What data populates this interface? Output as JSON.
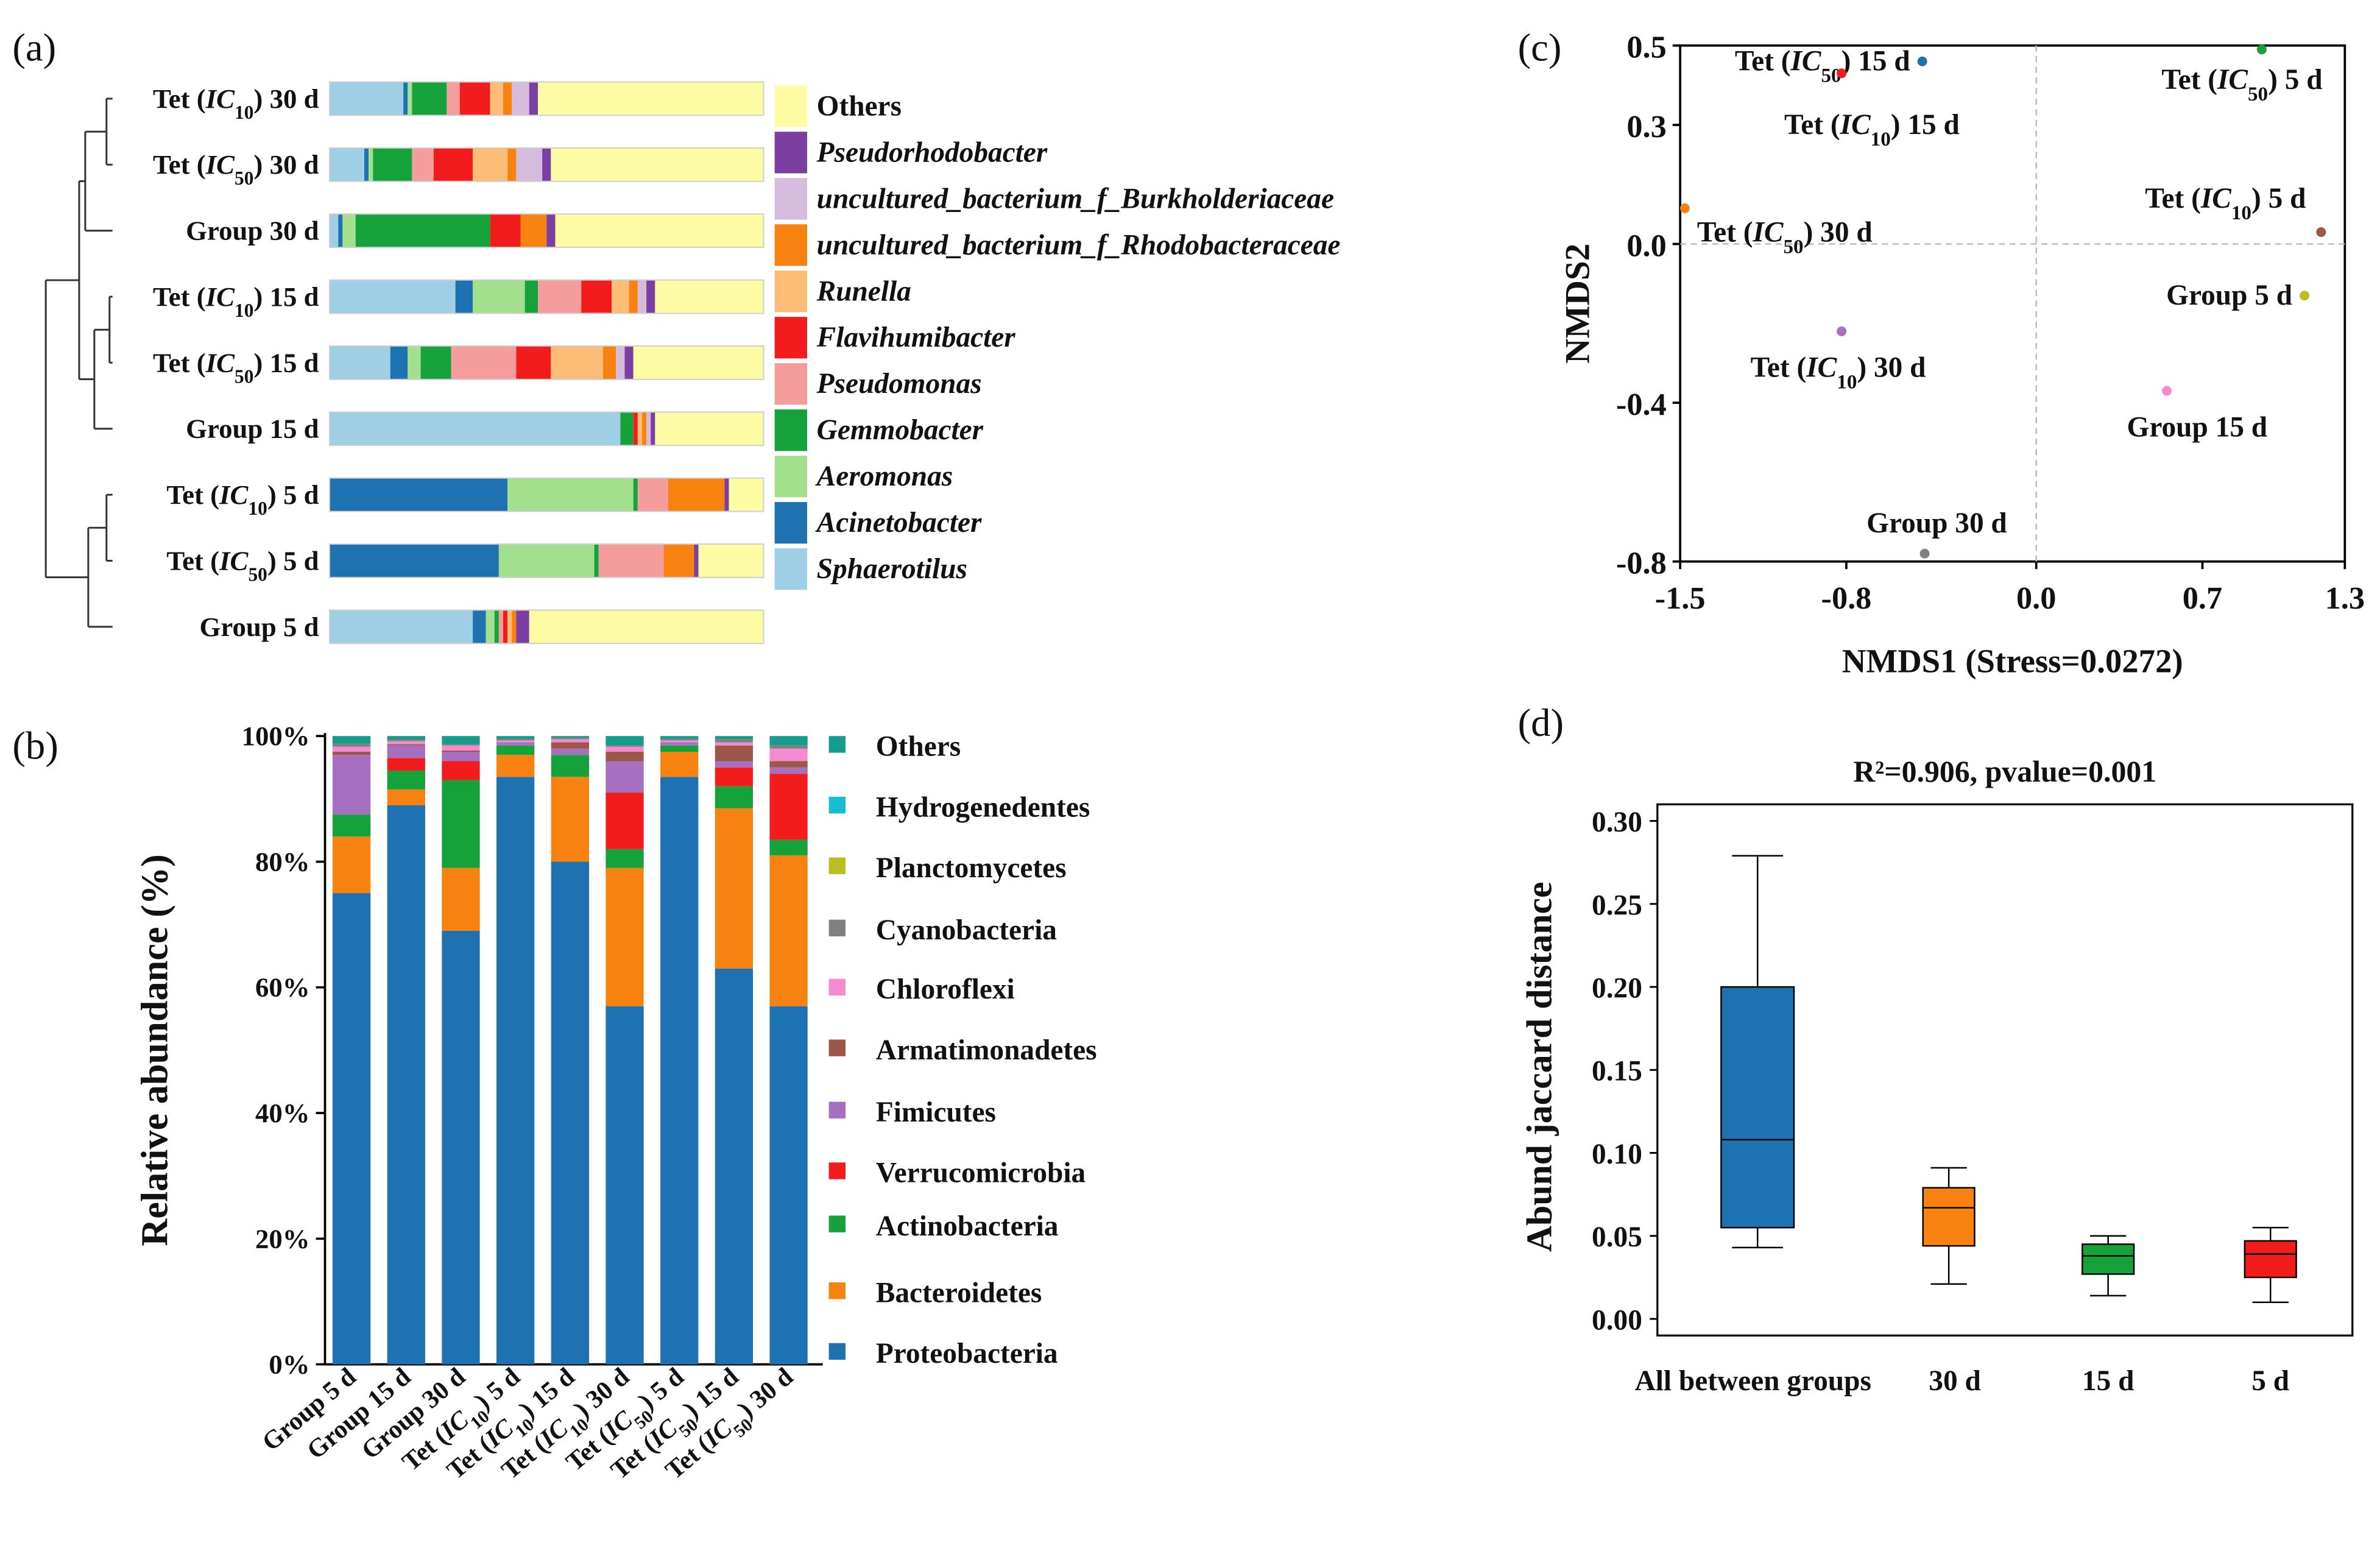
{
  "figure": {
    "panel_labels": [
      "(a)",
      "(b)",
      "(c)",
      "(d)"
    ]
  },
  "chart_data": [
    {
      "panel": "a",
      "type": "bar",
      "orientation": "horizontal-stacked",
      "title": "",
      "xlabel": "",
      "ylabel": "",
      "categories": [
        "Tet (IC10) 30 d",
        "Tet (IC50) 30 d",
        "Group 30 d",
        "Tet (IC10) 15 d",
        "Tet (IC50) 15 d",
        "Group 15 d",
        "Tet (IC10) 5 d",
        "Tet (IC50) 5 d",
        "Group 5 d"
      ],
      "category_labels": [
        {
          "pre": "Tet (",
          "it": "IC",
          "sub": "10",
          "post": ") 30 d"
        },
        {
          "pre": "Tet (",
          "it": "IC",
          "sub": "50",
          "post": ") 30 d"
        },
        {
          "pre": "Group 30 d",
          "it": "",
          "sub": "",
          "post": ""
        },
        {
          "pre": "Tet (",
          "it": "IC",
          "sub": "10",
          "post": ") 15 d"
        },
        {
          "pre": "Tet (",
          "it": "IC",
          "sub": "50",
          "post": ") 15 d"
        },
        {
          "pre": "Group 15 d",
          "it": "",
          "sub": "",
          "post": ""
        },
        {
          "pre": "Tet (",
          "it": "IC",
          "sub": "10",
          "post": ") 5 d"
        },
        {
          "pre": "Tet (",
          "it": "IC",
          "sub": "50",
          "post": ") 5 d"
        },
        {
          "pre": "Group 5 d",
          "it": "",
          "sub": "",
          "post": ""
        }
      ],
      "series": [
        {
          "name": "Sphaerotilus",
          "color": "#9ecfe4",
          "values": [
            17,
            8,
            2,
            29,
            14,
            67,
            0,
            0,
            33
          ]
        },
        {
          "name": "Acinetobacter",
          "color": "#1f72b2",
          "values": [
            1,
            1,
            1,
            4,
            4,
            0,
            41,
            39,
            3
          ]
        },
        {
          "name": "Aeromonas",
          "color": "#a2e08e",
          "values": [
            1,
            1,
            3,
            12,
            3,
            0,
            29,
            22,
            2
          ]
        },
        {
          "name": "Gemmobacter",
          "color": "#16a23b",
          "values": [
            8,
            9,
            31,
            3,
            7,
            3,
            1,
            1,
            1
          ]
        },
        {
          "name": "Pseudomonas",
          "color": "#f59c9c",
          "values": [
            3,
            5,
            0,
            10,
            15,
            0,
            7,
            15,
            1
          ]
        },
        {
          "name": "Flavihumibacter",
          "color": "#f21c1c",
          "values": [
            7,
            9,
            7,
            7,
            8,
            1,
            0,
            0,
            1
          ]
        },
        {
          "name": "Runella",
          "color": "#fdbd77",
          "values": [
            3,
            8,
            0,
            4,
            12,
            1,
            0,
            0,
            1
          ]
        },
        {
          "name": "uncultured_bacterium_f_Rhodobacteraceae",
          "color": "#f7820f",
          "values": [
            2,
            2,
            6,
            2,
            3,
            1,
            13,
            7,
            1
          ]
        },
        {
          "name": "uncultured_bacterium_f_Burkholderiaceae",
          "color": "#d5bcdc",
          "values": [
            4,
            6,
            0,
            2,
            2,
            1,
            0,
            0,
            0
          ]
        },
        {
          "name": "Pseudorhodobacter",
          "color": "#7a3fa0",
          "values": [
            2,
            2,
            2,
            2,
            2,
            1,
            1,
            1,
            3
          ]
        },
        {
          "name": "Others",
          "color": "#fdfba4",
          "values": [
            52,
            49,
            48,
            25,
            30,
            25,
            8,
            15,
            54
          ]
        }
      ],
      "legend_position": "right",
      "legend_order": [
        "Others",
        "Pseudorhodobacter",
        "uncultured_bacterium_f_Burkholderiaceae",
        "uncultured_bacterium_f_Rhodobacteraceae",
        "Runella",
        "Flavihumibacter",
        "Pseudomonas",
        "Gemmobacter",
        "Aeromonas",
        "Acinetobacter",
        "Sphaerotilus"
      ],
      "dendrogram": "left"
    },
    {
      "panel": "b",
      "type": "bar",
      "orientation": "vertical-stacked",
      "title": "",
      "xlabel": "",
      "ylabel": "Relative abundance (%)",
      "ylim": [
        0,
        100
      ],
      "yticks": [
        "0%",
        "20%",
        "40%",
        "60%",
        "80%",
        "100%"
      ],
      "categories": [
        "Group 5 d",
        "Group 15 d",
        "Group 30 d",
        "Tet (IC10) 5 d",
        "Tet (IC10) 15 d",
        "Tet (IC10) 30 d",
        "Tet (IC50) 5 d",
        "Tet (IC50) 15 d",
        "Tet (IC50) 30 d"
      ],
      "category_labels": [
        {
          "pre": "Group 5 d",
          "it": "",
          "sub": "",
          "post": ""
        },
        {
          "pre": "Group 15 d",
          "it": "",
          "sub": "",
          "post": ""
        },
        {
          "pre": "Group 30 d",
          "it": "",
          "sub": "",
          "post": ""
        },
        {
          "pre": "Tet (",
          "it": "IC",
          "sub": "10",
          "post": ") 5 d"
        },
        {
          "pre": "Tet (",
          "it": "IC",
          "sub": "10",
          "post": ") 15 d"
        },
        {
          "pre": "Tet (",
          "it": "IC",
          "sub": "10",
          "post": ") 30 d"
        },
        {
          "pre": "Tet (",
          "it": "IC",
          "sub": "50",
          "post": ") 5 d"
        },
        {
          "pre": "Tet (",
          "it": "IC",
          "sub": "50",
          "post": ") 15 d"
        },
        {
          "pre": "Tet (",
          "it": "IC",
          "sub": "50",
          "post": ") 30 d"
        }
      ],
      "series": [
        {
          "name": "Proteobacteria",
          "color": "#1f72b2",
          "values": [
            75,
            89,
            69,
            93.5,
            80,
            57,
            93.5,
            63,
            57
          ]
        },
        {
          "name": "Bacteroidetes",
          "color": "#f7820f",
          "values": [
            9,
            2.5,
            10,
            3.5,
            13.5,
            22,
            4,
            25.5,
            24
          ]
        },
        {
          "name": "Actinobacteria",
          "color": "#16a23b",
          "values": [
            3.5,
            3,
            14,
            1.5,
            3.5,
            3,
            1,
            3.5,
            2.5
          ]
        },
        {
          "name": "Verrucomicrobia",
          "color": "#f21c1c",
          "values": [
            0,
            2,
            3,
            0,
            0,
            9,
            0,
            3,
            10.5
          ]
        },
        {
          "name": "Fimicutes",
          "color": "#a66fbf",
          "values": [
            9.5,
            2,
            1.5,
            0.5,
            1,
            5,
            0.5,
            1,
            1
          ]
        },
        {
          "name": "Armatimonadetes",
          "color": "#9c5749",
          "values": [
            0.5,
            0.2,
            0.2,
            0,
            1,
            1.5,
            0,
            2.5,
            1
          ]
        },
        {
          "name": "Chloroflexi",
          "color": "#f58ad0",
          "values": [
            0.8,
            0.5,
            0.8,
            0.3,
            0.5,
            0.8,
            0.3,
            0.5,
            2
          ]
        },
        {
          "name": "Cyanobacteria",
          "color": "#808080",
          "values": [
            0.5,
            0.2,
            0.2,
            0.2,
            0.2,
            0.2,
            0.2,
            0.5,
            0.5
          ]
        },
        {
          "name": "Planctomycetes",
          "color": "#bcbd22",
          "values": [
            0,
            0,
            0,
            0,
            0,
            0,
            0,
            0,
            0
          ]
        },
        {
          "name": "Hydrogenedentes",
          "color": "#17becf",
          "values": [
            0,
            0,
            0,
            0,
            0,
            0,
            0,
            0,
            0
          ]
        },
        {
          "name": "Others",
          "color": "#169c8c",
          "values": [
            1.2,
            0.6,
            1.3,
            0.5,
            0.3,
            1.5,
            0.5,
            0.5,
            1.5
          ]
        }
      ],
      "legend_position": "right",
      "legend_order": [
        "Others",
        "Hydrogenedentes",
        "Planctomycetes",
        "Cyanobacteria",
        "Chloroflexi",
        "Armatimonadetes",
        "Fimicutes",
        "Verrucomicrobia",
        "Actinobacteria",
        "Bacteroidetes",
        "Proteobacteria"
      ]
    },
    {
      "panel": "c",
      "type": "scatter",
      "title": "",
      "xlabel": "NMDS1 (Stress=0.0272)",
      "ylabel": "NMDS2",
      "xlim": [
        -1.5,
        1.3
      ],
      "ylim": [
        -0.8,
        0.5
      ],
      "xticks": [
        -1.5,
        -0.8,
        0.0,
        0.7,
        1.3
      ],
      "xtick_labels": [
        "-1.5",
        "-0.8",
        "0.0",
        "0.7",
        "1.3"
      ],
      "yticks": [
        0.5,
        0.3,
        0.0,
        -0.4,
        -0.8
      ],
      "ytick_labels": [
        "0.5",
        "0.3",
        "0.0",
        "-0.4",
        "-0.8"
      ],
      "reference_lines": {
        "x": 0,
        "y": 0,
        "style": "dashed"
      },
      "points": [
        {
          "x": -0.48,
          "y": 0.46,
          "color": "#1f72b2",
          "label": {
            "pre": "Tet (",
            "it": "IC",
            "sub": "50",
            "post": ") 15 d"
          },
          "label_anchor": "end",
          "label_side": "left"
        },
        {
          "x": 0.95,
          "y": 0.49,
          "color": "#16a23b",
          "label": {
            "pre": "Tet (",
            "it": "IC",
            "sub": "50",
            "post": ") 5 d"
          },
          "label_anchor": "end",
          "label_side": "below"
        },
        {
          "x": -0.82,
          "y": 0.43,
          "color": "#f21c1c",
          "label": {
            "pre": "Tet (",
            "it": "IC",
            "sub": "10",
            "post": ") 15 d"
          },
          "label_anchor": "middle",
          "label_side": "below"
        },
        {
          "x": -1.48,
          "y": 0.09,
          "color": "#f7820f",
          "label": {
            "pre": "Tet (",
            "it": "IC",
            "sub": "50",
            "post": ") 30 d"
          },
          "label_anchor": "start",
          "label_side": "below-right"
        },
        {
          "x": 1.2,
          "y": 0.03,
          "color": "#9c5749",
          "label": {
            "pre": "Tet (",
            "it": "IC",
            "sub": "10",
            "post": ") 5 d"
          },
          "label_anchor": "end",
          "label_side": "above-left"
        },
        {
          "x": 1.13,
          "y": -0.13,
          "color": "#bcbd22",
          "label": {
            "pre": "Group 5 d",
            "it": "",
            "sub": "",
            "post": ""
          },
          "label_anchor": "end",
          "label_side": "left"
        },
        {
          "x": -0.82,
          "y": -0.22,
          "color": "#a66fbf",
          "label": {
            "pre": "Tet (",
            "it": "IC",
            "sub": "10",
            "post": ") 30 d"
          },
          "label_anchor": "start",
          "label_side": "below-right"
        },
        {
          "x": 0.55,
          "y": -0.37,
          "color": "#f58ad0",
          "label": {
            "pre": "Group 15 d",
            "it": "",
            "sub": "",
            "post": ""
          },
          "label_anchor": "middle",
          "label_side": "below"
        },
        {
          "x": -0.47,
          "y": -0.78,
          "color": "#808080",
          "label": {
            "pre": "Group 30 d",
            "it": "",
            "sub": "",
            "post": ""
          },
          "label_anchor": "middle",
          "label_side": "above"
        }
      ]
    },
    {
      "panel": "d",
      "type": "box",
      "title": "R²=0.906, pvalue=0.001",
      "xlabel": "",
      "ylabel": "Abund jaccard distance",
      "ylim": [
        -0.01,
        0.31
      ],
      "yticks": [
        0.0,
        0.05,
        0.1,
        0.15,
        0.2,
        0.25,
        0.3
      ],
      "ytick_labels": [
        "0.00",
        "0.05",
        "0.10",
        "0.15",
        "0.20",
        "0.25",
        "0.30"
      ],
      "categories": [
        "All between groups",
        "30 d",
        "15 d",
        "5 d"
      ],
      "boxes": [
        {
          "name": "All between groups",
          "color": "#1f72b2",
          "min": 0.043,
          "q1": 0.055,
          "median": 0.108,
          "q3": 0.2,
          "max": 0.279
        },
        {
          "name": "30 d",
          "color": "#f7820f",
          "min": 0.021,
          "q1": 0.044,
          "median": 0.067,
          "q3": 0.079,
          "max": 0.091
        },
        {
          "name": "15 d",
          "color": "#16a23b",
          "min": 0.014,
          "q1": 0.027,
          "median": 0.038,
          "q3": 0.045,
          "max": 0.05
        },
        {
          "name": "5 d",
          "color": "#f21c1c",
          "min": 0.01,
          "q1": 0.025,
          "median": 0.039,
          "q3": 0.047,
          "max": 0.055
        }
      ]
    }
  ]
}
